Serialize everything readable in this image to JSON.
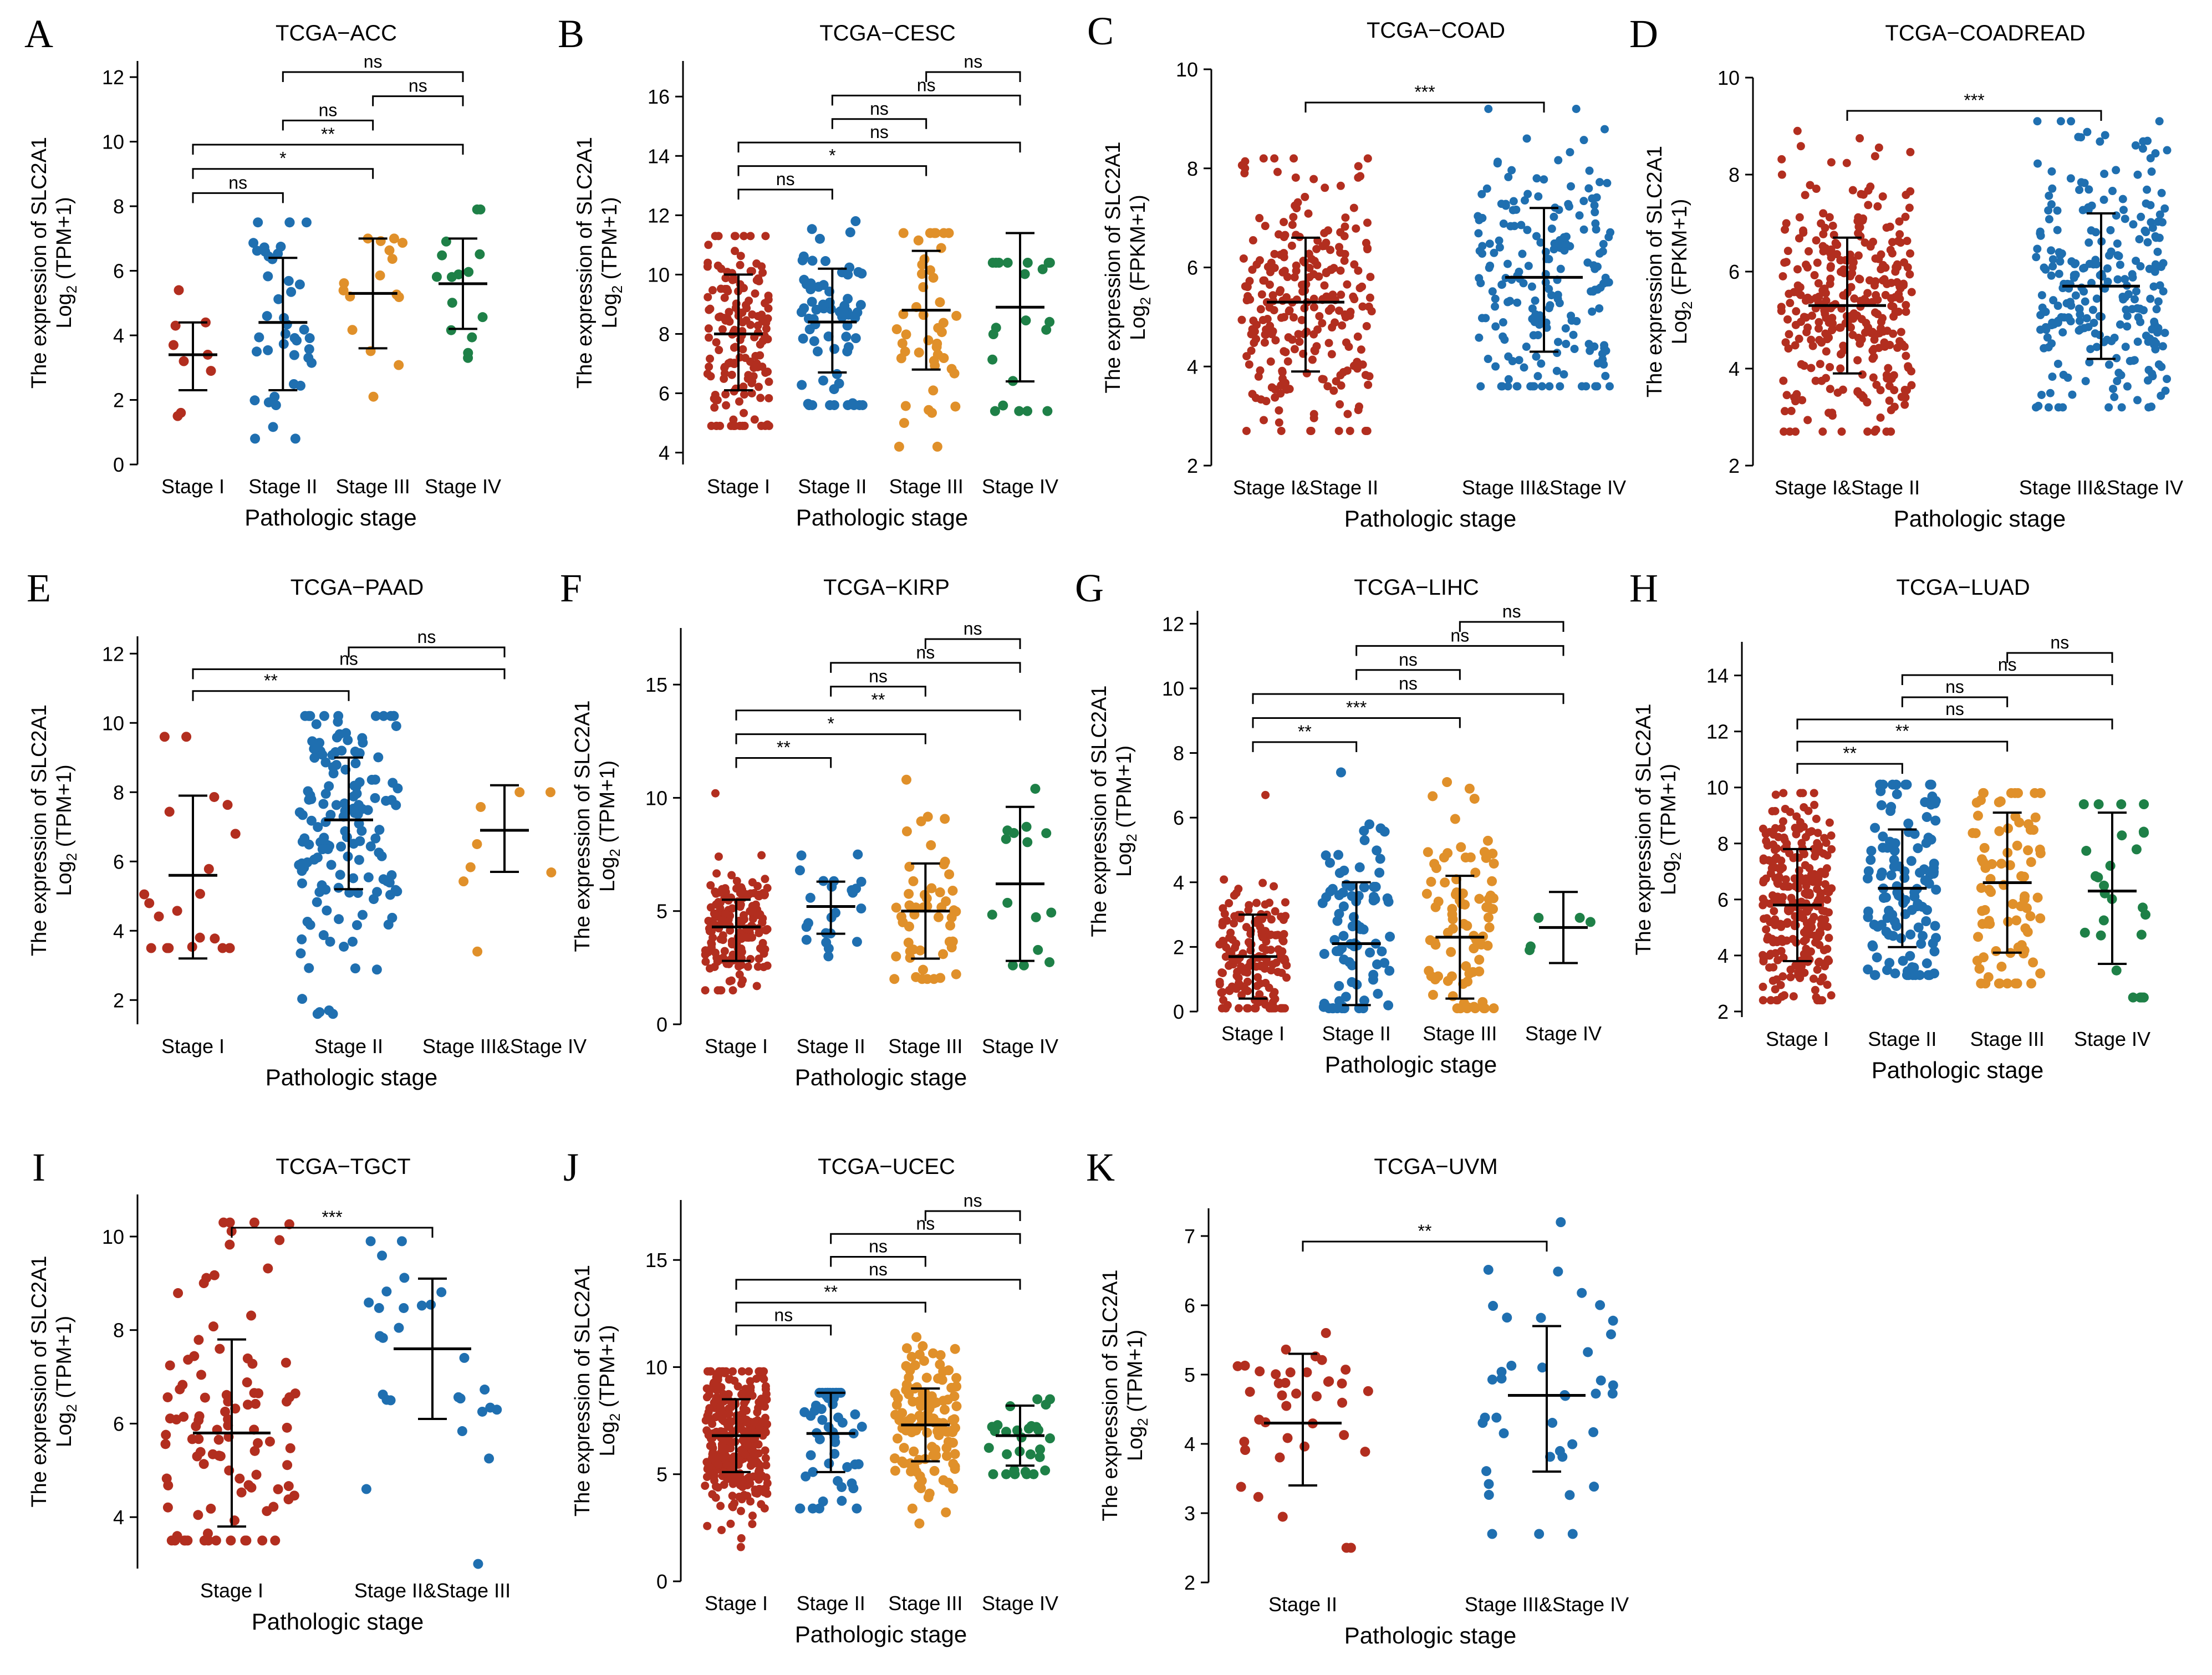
{
  "figure_title": "SLC2A1 expression by pathologic stage across TCGA cohorts",
  "colors": {
    "stage1": "#B22E1F",
    "stage2": "#1F6FB0",
    "stage3": "#E0902A",
    "stage4": "#1E8047",
    "axis": "#000000",
    "text": "#000000"
  },
  "chart_data": [
    {
      "letter": "A",
      "type": "scatter",
      "title": "TCGA−ACC",
      "xlabel": "Pathologic stage",
      "ylabel_line1": "The expression of SLC2A1",
      "ylabel_main": "Log",
      "ylabel_sub": "2",
      "ylabel_rest": " (TPM+1)",
      "ylim": [
        0,
        12.5
      ],
      "yticks": [
        0,
        2,
        4,
        6,
        8,
        10,
        12
      ],
      "groups": [
        {
          "label": "Stage I",
          "color_key": "stage1",
          "median": 3.4,
          "lower": 2.3,
          "upper": 4.4,
          "n": 9,
          "min": 1.5,
          "max": 5.4,
          "values": [
            4.4,
            4.3,
            3.4,
            3.2,
            2.9,
            1.6,
            1.5,
            3.7,
            5.4
          ]
        },
        {
          "label": "Stage II",
          "color_key": "stage2",
          "median": 4.4,
          "lower": 2.3,
          "upper": 6.4,
          "n": 42,
          "min": 0.8,
          "max": 7.5
        },
        {
          "label": "Stage III",
          "color_key": "stage3",
          "median": 5.3,
          "lower": 3.6,
          "upper": 7.0,
          "n": 16,
          "min": 2.1,
          "max": 7.0
        },
        {
          "label": "Stage IV",
          "color_key": "stage4",
          "median": 5.6,
          "lower": 4.2,
          "upper": 7.0,
          "n": 15,
          "min": 3.3,
          "max": 7.9
        }
      ],
      "comparisons": [
        {
          "a": 1,
          "b": 3,
          "label": "ns"
        },
        {
          "a": 2,
          "b": 3,
          "label": "ns"
        },
        {
          "a": 1,
          "b": 2,
          "label": "ns"
        },
        {
          "a": 0,
          "b": 3,
          "label": "**"
        },
        {
          "a": 0,
          "b": 2,
          "label": "*"
        },
        {
          "a": 0,
          "b": 1,
          "label": "ns"
        }
      ]
    },
    {
      "letter": "B",
      "type": "scatter",
      "title": "TCGA−CESC",
      "xlabel": "Pathologic stage",
      "ylabel_line1": "The expression of SLC2A1",
      "ylabel_main": "Log",
      "ylabel_sub": "2",
      "ylabel_rest": " (TPM+1)",
      "ylim": [
        3.6,
        17.2
      ],
      "yticks": [
        4,
        6,
        8,
        10,
        12,
        14,
        16
      ],
      "groups": [
        {
          "label": "Stage I",
          "color_key": "stage1",
          "median": 8.0,
          "lower": 6.1,
          "upper": 10.0,
          "n": 160,
          "min": 4.9,
          "max": 11.3
        },
        {
          "label": "Stage II",
          "color_key": "stage2",
          "median": 8.4,
          "lower": 6.7,
          "upper": 10.2,
          "n": 68,
          "min": 5.6,
          "max": 11.8
        },
        {
          "label": "Stage III",
          "color_key": "stage3",
          "median": 8.8,
          "lower": 6.8,
          "upper": 10.8,
          "n": 45,
          "min": 4.2,
          "max": 11.4
        },
        {
          "label": "Stage IV",
          "color_key": "stage4",
          "median": 8.9,
          "lower": 6.4,
          "upper": 11.4,
          "n": 21,
          "min": 5.4,
          "max": 10.4
        }
      ],
      "comparisons": [
        {
          "a": 2,
          "b": 3,
          "label": "ns"
        },
        {
          "a": 1,
          "b": 3,
          "label": "ns"
        },
        {
          "a": 1,
          "b": 2,
          "label": "ns"
        },
        {
          "a": 0,
          "b": 3,
          "label": "ns"
        },
        {
          "a": 0,
          "b": 2,
          "label": "*"
        },
        {
          "a": 0,
          "b": 1,
          "label": "ns"
        }
      ]
    },
    {
      "letter": "C",
      "type": "scatter",
      "title": "TCGA−COAD",
      "xlabel": "Pathologic stage",
      "ylabel_line1": "The expression of SLC2A1",
      "ylabel_main": "Log",
      "ylabel_sub": "2",
      "ylabel_rest": " (FPKM+1)",
      "ylim": [
        2,
        10
      ],
      "yticks": [
        2,
        4,
        6,
        8,
        10
      ],
      "groups": [
        {
          "label": "Stage I&Stage II",
          "color_key": "stage1",
          "median": 5.3,
          "lower": 3.9,
          "upper": 6.6,
          "n": 260,
          "min": 2.7,
          "max": 8.2
        },
        {
          "label": "Stage III&Stage IV",
          "color_key": "stage2",
          "median": 5.8,
          "lower": 4.3,
          "upper": 7.2,
          "n": 200,
          "min": 3.6,
          "max": 9.2
        }
      ],
      "comparisons": [
        {
          "a": 0,
          "b": 1,
          "label": "***"
        }
      ]
    },
    {
      "letter": "D",
      "type": "scatter",
      "title": "TCGA−COADREAD",
      "xlabel": "Pathologic stage",
      "ylabel_line1": "The expression of SLC2A1",
      "ylabel_main": "Log",
      "ylabel_sub": "2",
      "ylabel_rest": " (FPKM+1)",
      "ylim": [
        2,
        10
      ],
      "yticks": [
        2,
        4,
        6,
        8,
        10
      ],
      "groups": [
        {
          "label": "Stage I&Stage II",
          "color_key": "stage1",
          "median": 5.3,
          "lower": 3.9,
          "upper": 6.7,
          "n": 330,
          "min": 2.7,
          "max": 8.9
        },
        {
          "label": "Stage III&Stage IV",
          "color_key": "stage2",
          "median": 5.7,
          "lower": 4.2,
          "upper": 7.2,
          "n": 260,
          "min": 3.2,
          "max": 9.1
        }
      ],
      "comparisons": [
        {
          "a": 0,
          "b": 1,
          "label": "***"
        }
      ]
    },
    {
      "letter": "E",
      "type": "scatter",
      "title": "TCGA−PAAD",
      "xlabel": "Pathologic stage",
      "ylabel_line1": "The expression of SLC2A1",
      "ylabel_main": "Log",
      "ylabel_sub": "2",
      "ylabel_rest": " (TPM+1)",
      "ylim": [
        1.3,
        12.5
      ],
      "yticks": [
        2,
        4,
        6,
        8,
        10,
        12
      ],
      "groups": [
        {
          "label": "Stage I",
          "color_key": "stage1",
          "median": 5.6,
          "lower": 3.2,
          "upper": 7.9,
          "n": 21,
          "min": 3.5,
          "max": 9.6
        },
        {
          "label": "Stage II",
          "color_key": "stage2",
          "median": 7.2,
          "lower": 5.2,
          "upper": 9.0,
          "n": 147,
          "min": 1.6,
          "max": 10.2
        },
        {
          "label": "Stage III&Stage IV",
          "color_key": "stage3",
          "median": 6.9,
          "lower": 5.7,
          "upper": 8.2,
          "n": 8,
          "min": 3.4,
          "max": 8.0
        }
      ],
      "comparisons": [
        {
          "a": 1,
          "b": 2,
          "label": "ns"
        },
        {
          "a": 0,
          "b": 2,
          "label": "ns"
        },
        {
          "a": 0,
          "b": 1,
          "label": "**"
        }
      ]
    },
    {
      "letter": "F",
      "type": "scatter",
      "title": "TCGA−KIRP",
      "xlabel": "Pathologic stage",
      "ylabel_line1": "The expression of SLC2A1",
      "ylabel_main": "Log",
      "ylabel_sub": "2",
      "ylabel_rest": " (TPM+1)",
      "ylim": [
        0,
        17.5
      ],
      "yticks": [
        0,
        5,
        10,
        15
      ],
      "groups": [
        {
          "label": "Stage I",
          "color_key": "stage1",
          "median": 4.3,
          "lower": 2.8,
          "upper": 5.5,
          "n": 172,
          "min": 1.5,
          "max": 10.2
        },
        {
          "label": "Stage II",
          "color_key": "stage2",
          "median": 5.2,
          "lower": 4.0,
          "upper": 6.3,
          "n": 23,
          "min": 3.0,
          "max": 7.5
        },
        {
          "label": "Stage III",
          "color_key": "stage3",
          "median": 5.0,
          "lower": 2.9,
          "upper": 7.1,
          "n": 51,
          "min": 2.0,
          "max": 10.8
        },
        {
          "label": "Stage IV",
          "color_key": "stage4",
          "median": 6.2,
          "lower": 2.8,
          "upper": 9.6,
          "n": 15,
          "min": 2.6,
          "max": 10.4
        }
      ],
      "comparisons": [
        {
          "a": 2,
          "b": 3,
          "label": "ns"
        },
        {
          "a": 1,
          "b": 3,
          "label": "ns"
        },
        {
          "a": 1,
          "b": 2,
          "label": "ns"
        },
        {
          "a": 0,
          "b": 3,
          "label": "**"
        },
        {
          "a": 0,
          "b": 2,
          "label": "*"
        },
        {
          "a": 0,
          "b": 1,
          "label": "**"
        }
      ]
    },
    {
      "letter": "G",
      "type": "scatter",
      "title": "TCGA−LIHC",
      "xlabel": "Pathologic stage",
      "ylabel_line1": "The expression of SLC2A1",
      "ylabel_main": "Log",
      "ylabel_sub": "2",
      "ylabel_rest": " (TPM+1)",
      "ylim": [
        0,
        12.4
      ],
      "yticks": [
        0,
        2,
        4,
        6,
        8,
        10,
        12
      ],
      "groups": [
        {
          "label": "Stage I",
          "color_key": "stage1",
          "median": 1.7,
          "lower": 0.4,
          "upper": 3.0,
          "n": 171,
          "min": 0.1,
          "max": 6.7
        },
        {
          "label": "Stage II",
          "color_key": "stage2",
          "median": 2.1,
          "lower": 0.2,
          "upper": 4.0,
          "n": 86,
          "min": 0.1,
          "max": 7.4
        },
        {
          "label": "Stage III",
          "color_key": "stage3",
          "median": 2.3,
          "lower": 0.4,
          "upper": 4.2,
          "n": 85,
          "min": 0.1,
          "max": 7.1
        },
        {
          "label": "Stage IV",
          "color_key": "stage4",
          "median": 2.6,
          "lower": 1.5,
          "upper": 3.7,
          "n": 5,
          "min": 1.9,
          "max": 2.9
        }
      ],
      "comparisons": [
        {
          "a": 2,
          "b": 3,
          "label": "ns"
        },
        {
          "a": 1,
          "b": 3,
          "label": "ns"
        },
        {
          "a": 1,
          "b": 2,
          "label": "ns"
        },
        {
          "a": 0,
          "b": 3,
          "label": "ns"
        },
        {
          "a": 0,
          "b": 2,
          "label": "***"
        },
        {
          "a": 0,
          "b": 1,
          "label": "**"
        }
      ]
    },
    {
      "letter": "H",
      "type": "scatter",
      "title": "TCGA−LUAD",
      "xlabel": "Pathologic stage",
      "ylabel_line1": "The expression of SLC2A1",
      "ylabel_main": "Log",
      "ylabel_sub": "2",
      "ylabel_rest": " (TPM+1)",
      "ylim": [
        1.8,
        15.2
      ],
      "yticks": [
        2,
        4,
        6,
        8,
        10,
        12,
        14
      ],
      "groups": [
        {
          "label": "Stage I",
          "color_key": "stage1",
          "median": 5.8,
          "lower": 3.8,
          "upper": 7.8,
          "n": 280,
          "min": 2.4,
          "max": 9.8
        },
        {
          "label": "Stage II",
          "color_key": "stage2",
          "median": 6.4,
          "lower": 4.3,
          "upper": 8.5,
          "n": 122,
          "min": 3.3,
          "max": 10.1
        },
        {
          "label": "Stage III",
          "color_key": "stage3",
          "median": 6.6,
          "lower": 4.1,
          "upper": 9.1,
          "n": 84,
          "min": 3.0,
          "max": 9.8
        },
        {
          "label": "Stage IV",
          "color_key": "stage4",
          "median": 6.3,
          "lower": 3.7,
          "upper": 9.1,
          "n": 26,
          "min": 2.5,
          "max": 9.4
        }
      ],
      "comparisons": [
        {
          "a": 2,
          "b": 3,
          "label": "ns"
        },
        {
          "a": 1,
          "b": 3,
          "label": "ns"
        },
        {
          "a": 1,
          "b": 2,
          "label": "ns"
        },
        {
          "a": 0,
          "b": 3,
          "label": "ns"
        },
        {
          "a": 0,
          "b": 2,
          "label": "**"
        },
        {
          "a": 0,
          "b": 1,
          "label": "**"
        }
      ]
    },
    {
      "letter": "I",
      "type": "scatter",
      "title": "TCGA−TGCT",
      "xlabel": "Pathologic stage",
      "ylabel_line1": "The expression of SLC2A1",
      "ylabel_main": "Log",
      "ylabel_sub": "2",
      "ylabel_rest": " (TPM+1)",
      "ylim": [
        2.9,
        10.9
      ],
      "yticks": [
        4,
        6,
        8,
        10
      ],
      "groups": [
        {
          "label": "Stage I",
          "color_key": "stage1",
          "median": 5.8,
          "lower": 3.8,
          "upper": 7.8,
          "n": 100,
          "min": 3.5,
          "max": 10.3
        },
        {
          "label": "Stage II&Stage III",
          "color_key": "stage2",
          "median": 7.6,
          "lower": 6.1,
          "upper": 9.1,
          "n": 28,
          "min": 3.0,
          "max": 9.9
        }
      ],
      "comparisons": [
        {
          "a": 0,
          "b": 1,
          "label": "***"
        }
      ]
    },
    {
      "letter": "J",
      "type": "scatter",
      "title": "TCGA−UCEC",
      "xlabel": "Pathologic stage",
      "ylabel_line1": "The expression of SLC2A1",
      "ylabel_main": "Log",
      "ylabel_sub": "2",
      "ylabel_rest": " (TPM+1)",
      "ylim": [
        0,
        17.8
      ],
      "yticks": [
        0,
        5,
        10,
        15
      ],
      "groups": [
        {
          "label": "Stage I",
          "color_key": "stage1",
          "median": 6.8,
          "lower": 5.1,
          "upper": 8.5,
          "n": 340,
          "min": 1.6,
          "max": 9.8
        },
        {
          "label": "Stage II",
          "color_key": "stage2",
          "median": 6.9,
          "lower": 5.1,
          "upper": 8.8,
          "n": 51,
          "min": 3.4,
          "max": 8.8
        },
        {
          "label": "Stage III",
          "color_key": "stage3",
          "median": 7.3,
          "lower": 5.6,
          "upper": 9.0,
          "n": 120,
          "min": 2.7,
          "max": 11.4
        },
        {
          "label": "Stage IV",
          "color_key": "stage4",
          "median": 6.8,
          "lower": 5.4,
          "upper": 8.2,
          "n": 29,
          "min": 5.0,
          "max": 8.5
        }
      ],
      "comparisons": [
        {
          "a": 2,
          "b": 3,
          "label": "ns"
        },
        {
          "a": 1,
          "b": 3,
          "label": "ns"
        },
        {
          "a": 1,
          "b": 2,
          "label": "ns"
        },
        {
          "a": 0,
          "b": 3,
          "label": "ns"
        },
        {
          "a": 0,
          "b": 2,
          "label": "**"
        },
        {
          "a": 0,
          "b": 1,
          "label": "ns"
        }
      ]
    },
    {
      "letter": "K",
      "type": "scatter",
      "title": "TCGA−UVM",
      "xlabel": "Pathologic stage",
      "ylabel_line1": "The expression of SLC2A1",
      "ylabel_main": "Log",
      "ylabel_sub": "2",
      "ylabel_rest": " (TPM+1)",
      "ylim": [
        2,
        7.4
      ],
      "yticks": [
        2,
        3,
        4,
        5,
        6,
        7
      ],
      "groups": [
        {
          "label": "Stage II",
          "color_key": "stage1",
          "median": 4.3,
          "lower": 3.4,
          "upper": 5.3,
          "n": 38,
          "min": 2.5,
          "max": 5.6
        },
        {
          "label": "Stage III&Stage IV",
          "color_key": "stage2",
          "median": 4.7,
          "lower": 3.6,
          "upper": 5.7,
          "n": 40,
          "min": 2.7,
          "max": 7.2
        }
      ],
      "comparisons": [
        {
          "a": 0,
          "b": 1,
          "label": "**"
        }
      ]
    }
  ]
}
